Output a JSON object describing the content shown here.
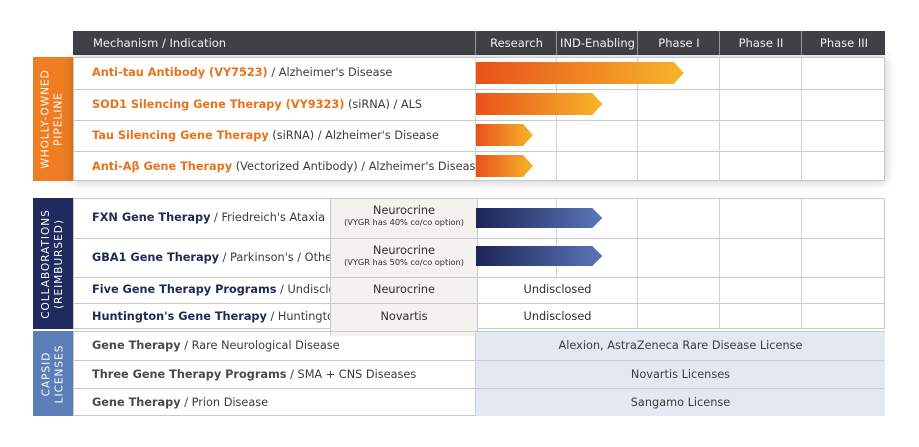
{
  "header": {
    "mechanism": "Mechanism / Indication",
    "stages": [
      "Research",
      "IND-Enabling",
      "Phase I",
      "Phase II",
      "Phase III"
    ]
  },
  "sections": {
    "wholly": {
      "label_line1": "WHOLLY-OWNED",
      "label_line2": "PIPELINE",
      "color": "#f07d21"
    },
    "collab": {
      "label_line1": "COLLABORATIONS",
      "label_line2": "(REIMBURSED)",
      "color": "#1f2a5e"
    },
    "capsid": {
      "label_line1": "CAPSID",
      "label_line2": "LICENSES",
      "color": "#5b7db8"
    }
  },
  "chart_data": {
    "type": "bar",
    "stages": [
      "Research",
      "IND-Enabling",
      "Phase I",
      "Phase II",
      "Phase III"
    ],
    "wholly_owned": [
      {
        "bold": "Anti-tau Antibody (VY7523)",
        "rest": " / Alzheimer's Disease",
        "progress_stages": 2.55
      },
      {
        "bold": "SOD1 Silencing Gene Therapy (VY9323)",
        "rest": " (siRNA) / ALS",
        "progress_stages": 1.55
      },
      {
        "bold": "Tau Silencing Gene Therapy",
        "rest": " (siRNA) / Alzheimer's Disease",
        "progress_stages": 0.7
      },
      {
        "bold": "Anti-Aβ Gene Therapy",
        "rest": " (Vectorized Antibody) / Alzheimer's Disease",
        "progress_stages": 0.7
      }
    ],
    "collaborations": [
      {
        "bold": "FXN Gene Therapy",
        "rest": " / Friedreich's Ataxia",
        "partner": "Neurocrine",
        "partner_note": "(VYGR has 40% co/co option)",
        "progress_stages": 1.55,
        "stage_text": ""
      },
      {
        "bold": "GBA1 Gene Therapy",
        "rest": " / Parkinson's / Other",
        "partner": "Neurocrine",
        "partner_note": "(VYGR has 50% co/co option)",
        "progress_stages": 1.55,
        "stage_text": ""
      },
      {
        "bold": "Five Gene Therapy Programs",
        "rest": " / Undisclosed",
        "partner": "Neurocrine",
        "partner_note": "",
        "progress_stages": 0,
        "stage_text": "Undisclosed"
      },
      {
        "bold": "Huntington's Gene Therapy",
        "rest": " / Huntington's",
        "partner": "Novartis",
        "partner_note": "",
        "progress_stages": 0,
        "stage_text": "Undisclosed"
      }
    ],
    "capsid_licenses": [
      {
        "bold": "Gene Therapy",
        "rest": " / Rare Neurological Disease",
        "license": "Alexion, AstraZeneca Rare Disease License"
      },
      {
        "bold": "Three Gene Therapy Programs",
        "rest": " / SMA + CNS Diseases",
        "license": "Novartis Licenses"
      },
      {
        "bold": "Gene Therapy",
        "rest": " / Prion Disease",
        "license": "Sangamo License"
      }
    ]
  }
}
